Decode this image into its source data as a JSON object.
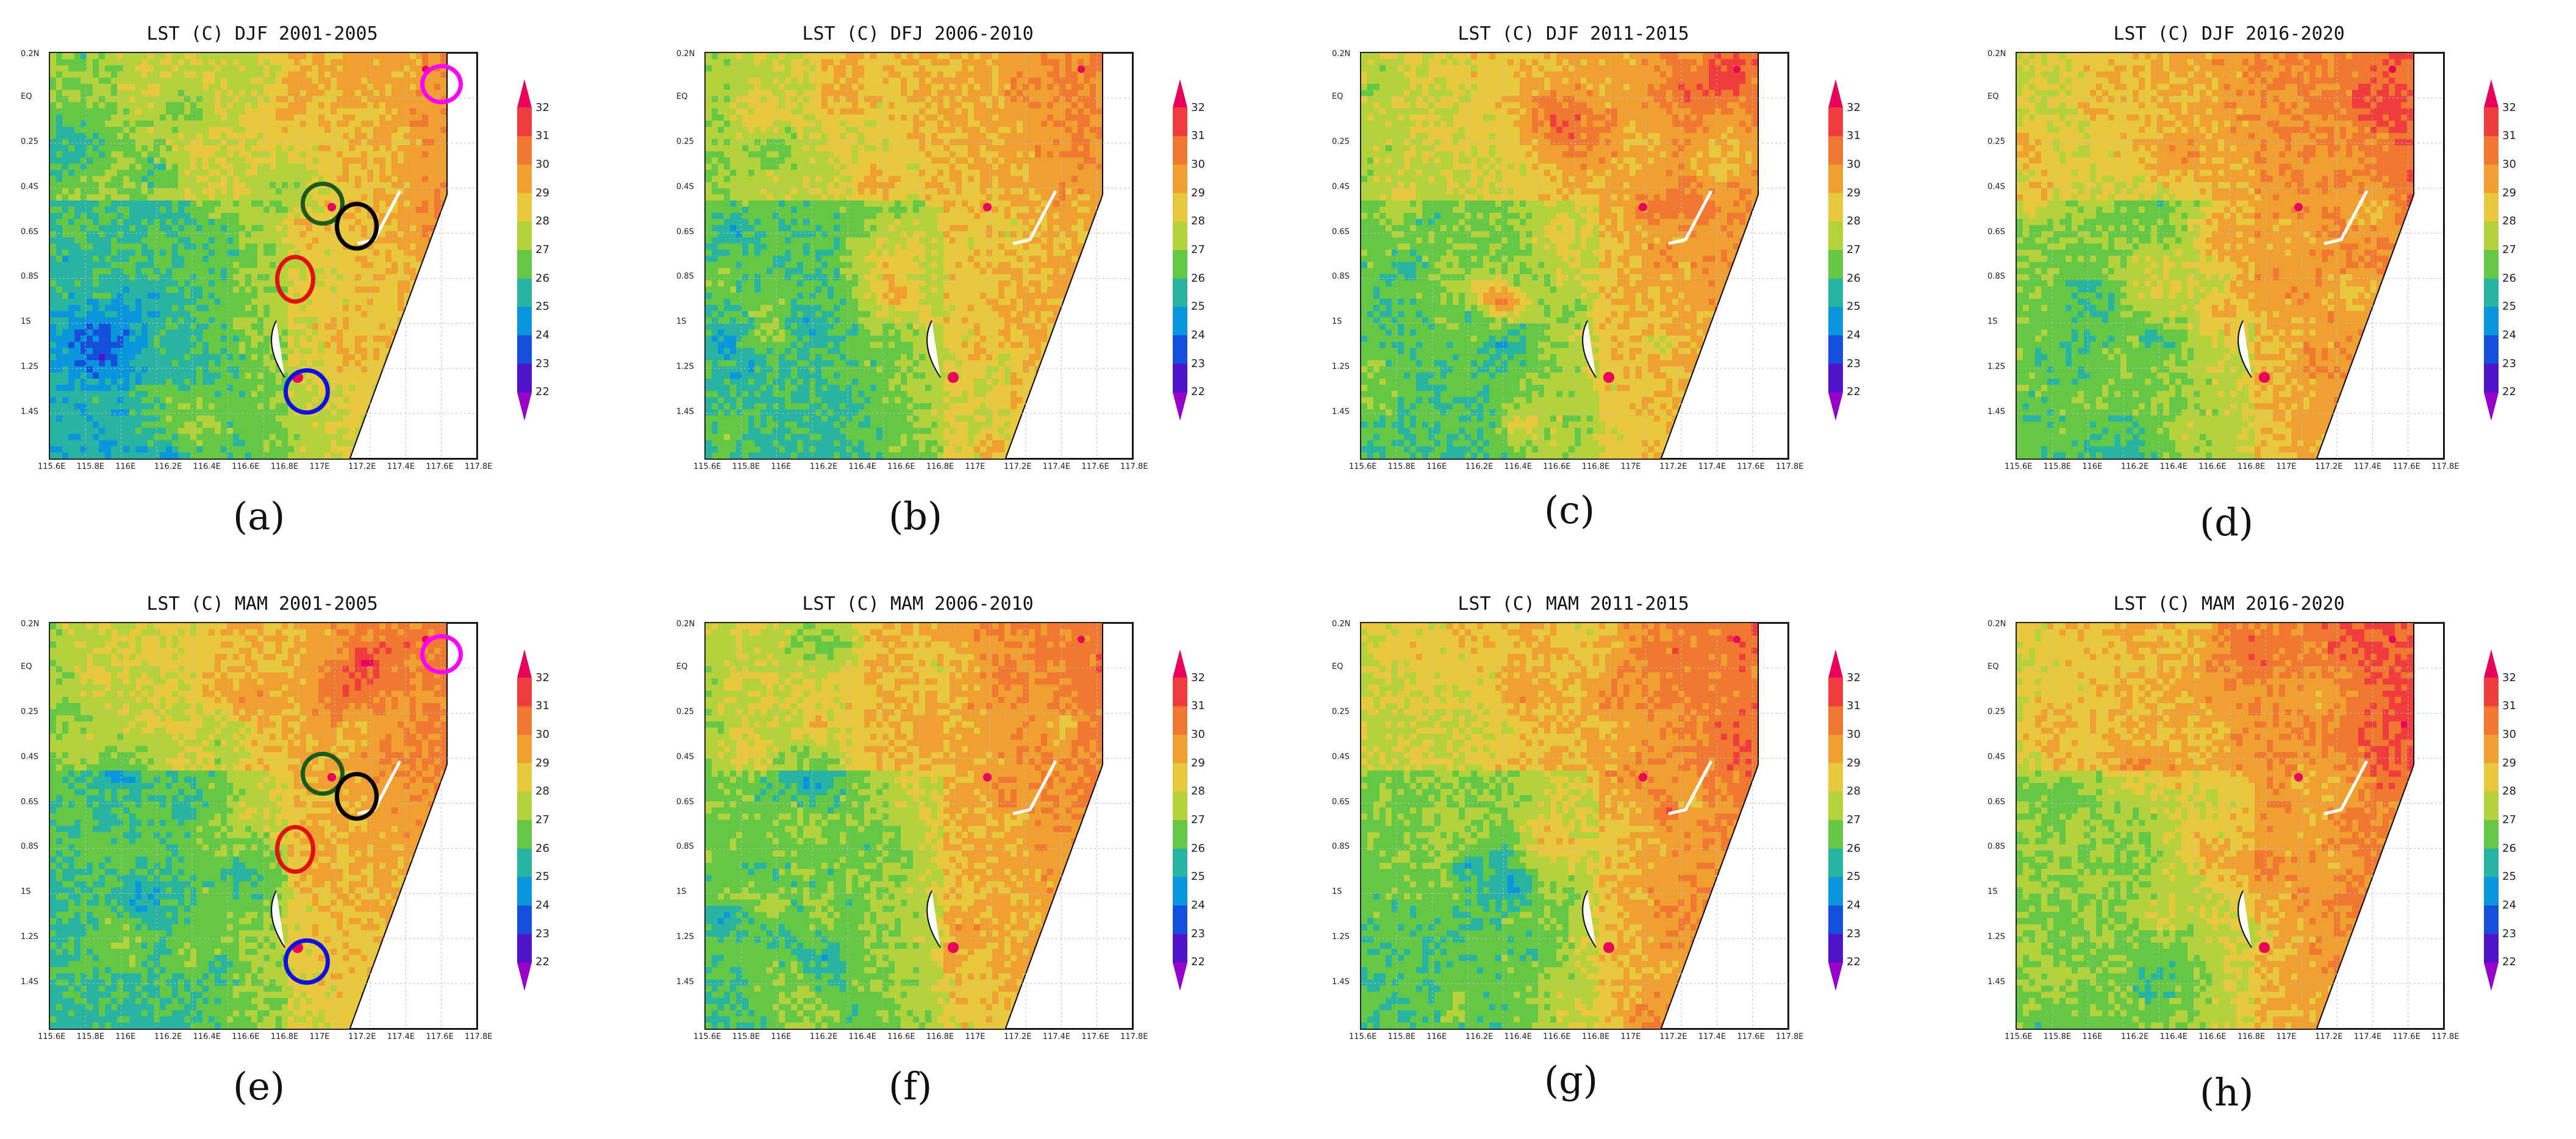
{
  "figure": {
    "panels": [
      {
        "title": "LST (C) DJF 2001-2005",
        "letter": "(a)",
        "seed": 11,
        "bias": -0.6
      },
      {
        "title": "LST (C) DFJ 2006-2010",
        "letter": "(b)",
        "seed": 23,
        "bias": -0.2
      },
      {
        "title": "LST (C) DJF 2011-2015",
        "letter": "(c)",
        "seed": 37,
        "bias": 0.1
      },
      {
        "title": "LST (C) DJF 2016-2020",
        "letter": "(d)",
        "seed": 41,
        "bias": 0.5
      },
      {
        "title": "LST (C) MAM 2001-2005",
        "letter": "(e)",
        "seed": 53,
        "bias": -0.1
      },
      {
        "title": "LST (C) MAM 2006-2010",
        "letter": "(f)",
        "seed": 67,
        "bias": 0.2
      },
      {
        "title": "LST (C) MAM 2011-2015",
        "letter": "(g)",
        "seed": 71,
        "bias": 0.3
      },
      {
        "title": "LST (C) MAM 2016-2020",
        "letter": "(h)",
        "seed": 89,
        "bias": 0.7
      }
    ],
    "x_ticks": [
      "115.6E",
      "115.8E",
      "116E",
      "116.2E",
      "116.4E",
      "116.6E",
      "116.8E",
      "117E",
      "117.2E",
      "117.4E",
      "117.6E",
      "117.8E"
    ],
    "y_ticks": [
      "0.2N",
      "EQ",
      "0.25",
      "0.4S",
      "0.6S",
      "0.8S",
      "1S",
      "1.2S",
      "1.4S"
    ],
    "colorbar": {
      "labels": [
        "32",
        "31",
        "30",
        "29",
        "28",
        "27",
        "26",
        "25",
        "24",
        "23",
        "22"
      ],
      "colors": [
        "#e8005a",
        "#f03c3c",
        "#f07830",
        "#f0a030",
        "#e8c83c",
        "#b4d23c",
        "#64c846",
        "#28b4a0",
        "#0a96dc",
        "#1450dc",
        "#5014c8",
        "#9600c8"
      ]
    },
    "markers": [
      {
        "color_name": "magenta",
        "color": "#ff00ff"
      },
      {
        "color_name": "dark-green",
        "color": "#1a5a1a"
      },
      {
        "color_name": "black",
        "color": "#000000"
      },
      {
        "color_name": "red",
        "color": "#e01010"
      },
      {
        "color_name": "blue",
        "color": "#1010e0"
      }
    ]
  }
}
